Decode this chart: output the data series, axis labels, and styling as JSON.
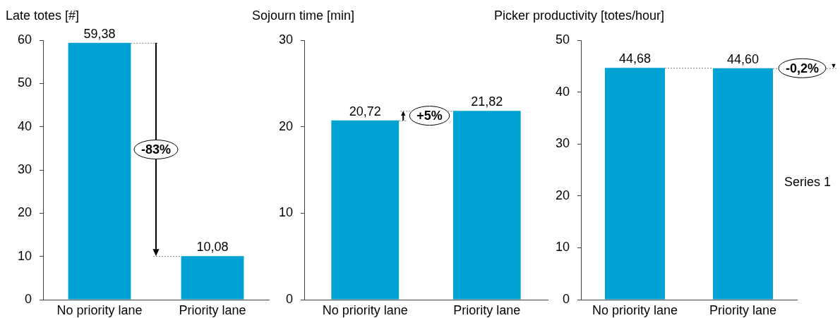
{
  "chart_data": [
    {
      "type": "bar",
      "title": "Late totes [#]",
      "categories": [
        "No priority lane",
        "Priority lane"
      ],
      "values": [
        59.38,
        10.08
      ],
      "value_labels": [
        "59,38",
        "10,08"
      ],
      "color": "#00a2d3",
      "ylim": [
        0,
        60
      ],
      "yticks": [
        0,
        10,
        20,
        30,
        40,
        50,
        60
      ],
      "annotations": [
        "-83%"
      ]
    },
    {
      "type": "bar",
      "title": "Sojourn time [min]",
      "categories": [
        "No priority lane",
        "Priority lane"
      ],
      "values": [
        20.72,
        21.82
      ],
      "value_labels": [
        "20,72",
        "21,82"
      ],
      "color": "#00a2d3",
      "ylim": [
        0,
        30
      ],
      "yticks": [
        0,
        10,
        20,
        30
      ],
      "annotations": [
        "+5%"
      ]
    },
    {
      "type": "bar",
      "title": "Picker productivity [totes/hour]",
      "categories": [
        "No priority lane",
        "Priority lane"
      ],
      "values": [
        44.68,
        44.6
      ],
      "value_labels": [
        "44,68",
        "44,60"
      ],
      "color": "#00a2d3",
      "ylim": [
        0,
        50
      ],
      "yticks": [
        0,
        10,
        20,
        30,
        40,
        50
      ],
      "annotations": [
        "-0,2%",
        "Series 1"
      ]
    }
  ]
}
